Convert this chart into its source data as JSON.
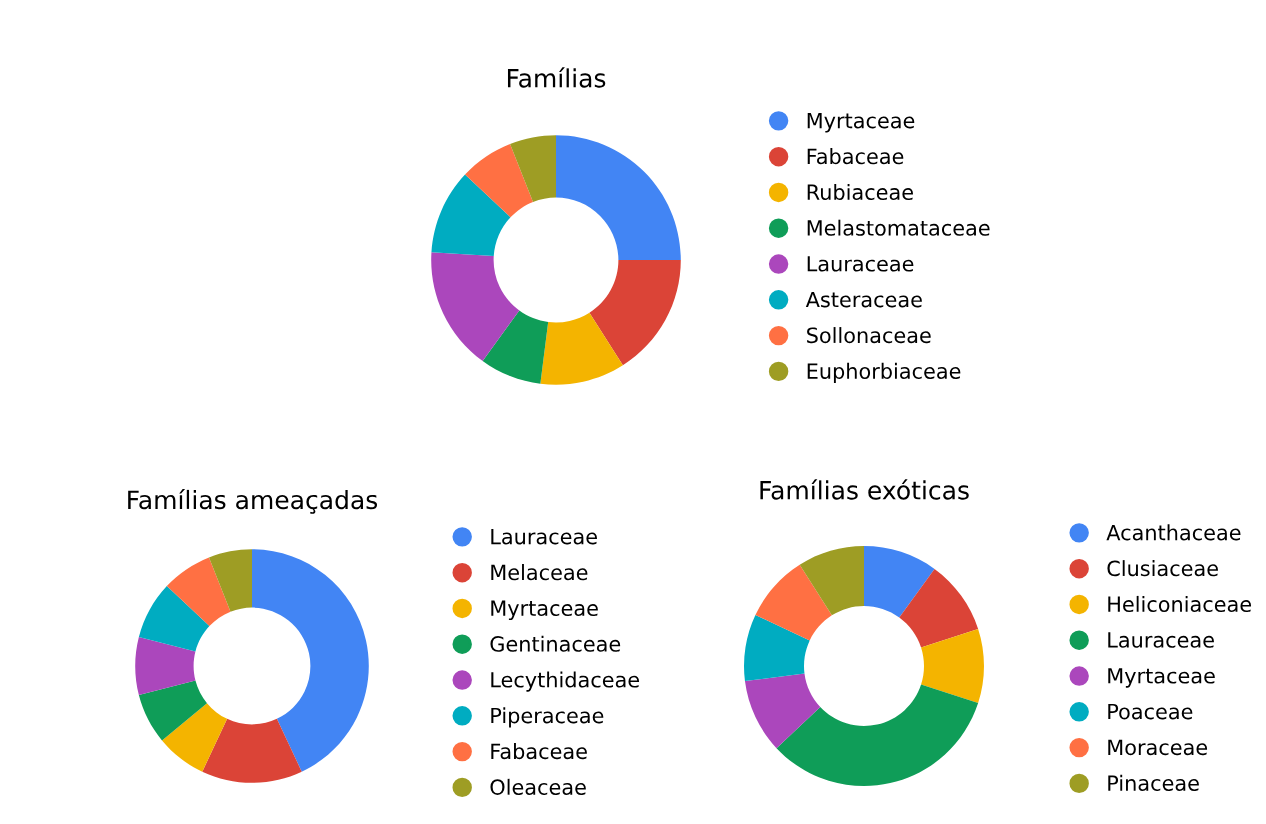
{
  "chart_data": [
    {
      "type": "donut",
      "title": "Famílias",
      "legend": "right",
      "categories": [
        "Myrtaceae",
        "Fabaceae",
        "Rubiaceae",
        "Melastomataceae",
        "Lauraceae",
        "Asteraceae",
        "Sollonaceae",
        "Euphorbiaceae"
      ],
      "values": [
        25,
        16,
        11,
        8,
        16,
        11,
        7,
        6
      ],
      "colors": [
        "#4285f4",
        "#db4437",
        "#f4b400",
        "#0f9d58",
        "#ab47bc",
        "#00acc1",
        "#ff7043",
        "#9e9d24"
      ]
    },
    {
      "type": "donut",
      "title": "Famílias ameaçadas",
      "legend": "right",
      "categories": [
        "Lauraceae",
        "Melaceae",
        "Myrtaceae",
        "Gentinaceae",
        "Lecythidaceae",
        "Piperaceae",
        "Fabaceae",
        "Oleaceae"
      ],
      "values": [
        43,
        14,
        7,
        7,
        8,
        8,
        7,
        6
      ],
      "colors": [
        "#4285f4",
        "#db4437",
        "#f4b400",
        "#0f9d58",
        "#ab47bc",
        "#00acc1",
        "#ff7043",
        "#9e9d24"
      ]
    },
    {
      "type": "donut",
      "title": "Famílias exóticas",
      "legend": "right",
      "categories": [
        "Acanthaceae",
        "Clusiaceae",
        "Heliconiaceae",
        "Lauraceae",
        "Myrtaceae",
        "Poaceae",
        "Moraceae",
        "Pinaceae"
      ],
      "values": [
        10,
        10,
        10,
        33,
        10,
        9,
        9,
        9
      ],
      "colors": [
        "#4285f4",
        "#db4437",
        "#f4b400",
        "#0f9d58",
        "#ab47bc",
        "#00acc1",
        "#ff7043",
        "#9e9d24"
      ]
    }
  ]
}
